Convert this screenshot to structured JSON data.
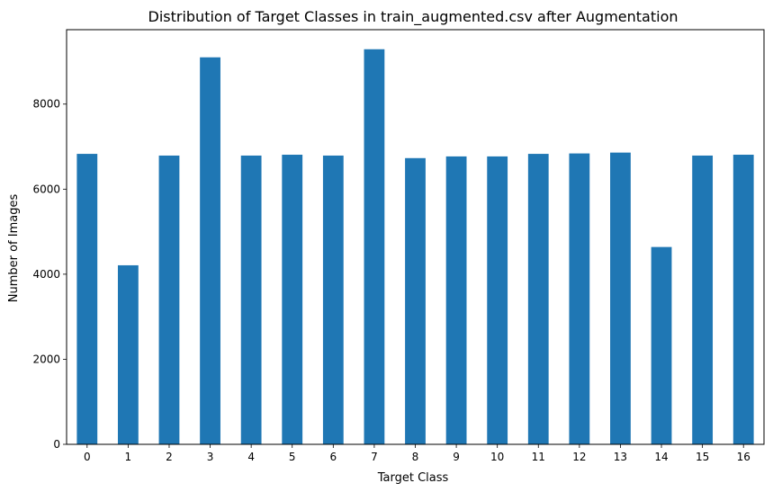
{
  "chart_data": {
    "type": "bar",
    "title": "Distribution of Target Classes in train_augmented.csv after Augmentation",
    "xlabel": "Target Class",
    "ylabel": "Number of Images",
    "categories": [
      "0",
      "1",
      "2",
      "3",
      "4",
      "5",
      "6",
      "7",
      "8",
      "9",
      "10",
      "11",
      "12",
      "13",
      "14",
      "15",
      "16"
    ],
    "values": [
      6830,
      4210,
      6790,
      9100,
      6790,
      6810,
      6790,
      9290,
      6730,
      6770,
      6770,
      6830,
      6840,
      6860,
      4640,
      6790,
      6810
    ],
    "ylim": [
      0,
      9750
    ],
    "yticks": [
      0,
      2000,
      4000,
      6000,
      8000
    ],
    "bar_color": "#1f77b4",
    "grid": false,
    "legend": "none"
  }
}
